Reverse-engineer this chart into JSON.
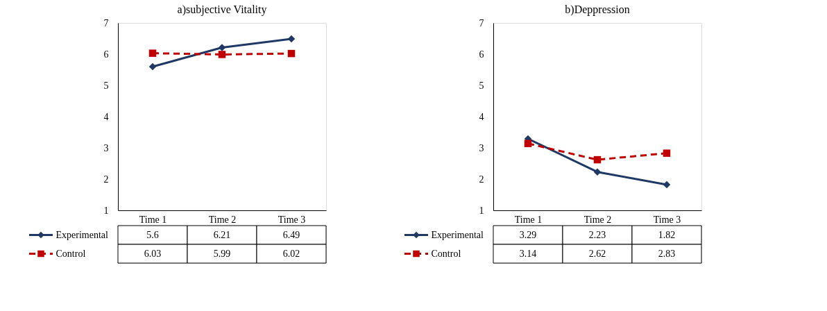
{
  "chart_data": [
    {
      "type": "line",
      "title": "a)subjective Vitality",
      "categories": [
        "Time 1",
        "Time 2",
        "Time 3"
      ],
      "ylim": [
        1,
        7
      ],
      "yticks": [
        1,
        2,
        3,
        4,
        5,
        6,
        7
      ],
      "grid": false,
      "legend": "bottom left",
      "data_labels": true,
      "series": [
        {
          "name": "Experimental",
          "color": "#1f3864",
          "values": [
            5.6,
            6.21,
            6.49
          ],
          "marker": "diamond",
          "line_style": "solid"
        },
        {
          "name": "Control",
          "color": "#c00000",
          "values": [
            6.03,
            5.99,
            6.02
          ],
          "marker": "square",
          "line_style": "dashed"
        }
      ]
    },
    {
      "type": "line",
      "title": "b)Deppression",
      "categories": [
        "Time 1",
        "Time 2",
        "Time 3"
      ],
      "ylim": [
        1,
        7
      ],
      "yticks": [
        1,
        2,
        3,
        4,
        5,
        6,
        7
      ],
      "grid": false,
      "legend": "bottom left",
      "data_labels": true,
      "series": [
        {
          "name": "Experimental",
          "color": "#1f3864",
          "values": [
            3.29,
            2.23,
            1.82
          ],
          "marker": "diamond",
          "line_style": "solid"
        },
        {
          "name": "Control",
          "color": "#c00000",
          "values": [
            3.14,
            2.62,
            2.83
          ],
          "marker": "square",
          "line_style": "dashed"
        }
      ]
    }
  ]
}
